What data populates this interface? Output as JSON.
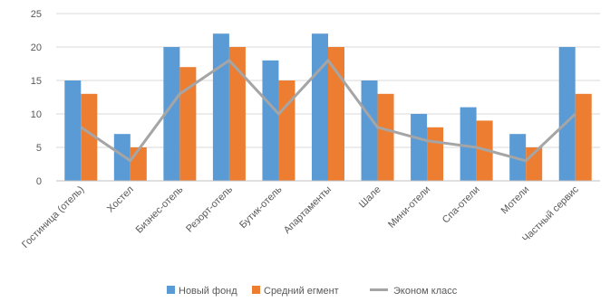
{
  "chart_data": {
    "type": "bar",
    "title": "",
    "xlabel": "",
    "ylabel": "",
    "ylim": [
      0,
      25
    ],
    "yticks": [
      0,
      5,
      10,
      15,
      20,
      25
    ],
    "grid": true,
    "legend": "bottom",
    "categories": [
      "Гостиница (отель)",
      "Хостел",
      "Бизнес-отель",
      "Резорт-отель",
      "Бутик-отель",
      "Апартаменты",
      "Шале",
      "Мини-отели",
      "Спа-отели",
      "Мотели",
      "Частный сервис"
    ],
    "series": [
      {
        "name": "Новый фонд",
        "type": "bar",
        "color": "#5B9BD5",
        "values": [
          15,
          7,
          20,
          22,
          18,
          22,
          15,
          10,
          11,
          7,
          20
        ]
      },
      {
        "name": "Средний  егмент",
        "type": "bar",
        "color": "#ED7D31",
        "values": [
          13,
          5,
          17,
          20,
          15,
          20,
          13,
          8,
          9,
          5,
          13
        ]
      },
      {
        "name": "Эконом класс",
        "type": "line",
        "color": "#A5A5A5",
        "values": [
          8,
          3,
          13,
          18,
          10,
          18,
          8,
          6,
          5,
          3,
          10
        ]
      }
    ]
  }
}
